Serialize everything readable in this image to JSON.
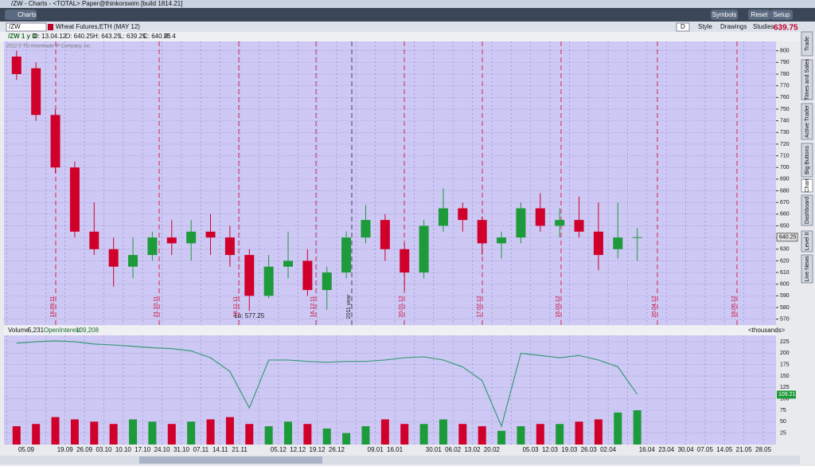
{
  "window": {
    "title": "/ZW - Charts - <TOTAL> Paper@thinkorswim [build 1814.21]",
    "tab": "Charts",
    "buttons": [
      "Symbols",
      "Reset",
      "Setup"
    ]
  },
  "symbol_bar": {
    "symbol": "/ZW",
    "description": "Wheat Futures,ETH (MAY 12)",
    "aggregation": "D",
    "tools": [
      "Style",
      "Drawings",
      "Studies"
    ],
    "last": "639.75"
  },
  "side_tabs": [
    "Trade",
    "Times and Sales",
    "Active Trader",
    "Big Buttons",
    "Chart",
    "Dashboard",
    "Level II",
    "Live News"
  ],
  "chart_data": {
    "type": "candlestick",
    "info": [
      "/ZW 1 y D",
      "D: 13.04.12",
      "O: 640.25",
      "H: 643.25",
      "L: 639.25",
      "C: 640.25",
      "R: 4"
    ],
    "copyright": "2012 © TD Ameritrade IP Company, Inc.",
    "low_annotation": "Lo: 577.25",
    "annotations": [
      "16.09.11",
      "21.10.11",
      "18.11.11",
      "16.12.11",
      "2011 year",
      "20.01.12",
      "17.02.12",
      "16.03.12",
      "20.04.12",
      "18.05.12"
    ],
    "categories": [
      null,
      "05.09",
      null,
      "19.09",
      "26.09",
      "03.10",
      "10.10",
      "17.10",
      "24.10",
      "31.10",
      "07.11",
      "14.11",
      "21.11",
      null,
      "05.12",
      "12.12",
      "19.12",
      "26.12",
      null,
      "09.01",
      "16.01",
      null,
      "30.01",
      "06.02",
      "13.02",
      "20.02",
      null,
      "05.03",
      "12.03",
      "19.03",
      "26.03",
      "02.04",
      null,
      "16.04",
      "23.04",
      "30.04",
      "07.05",
      "14.05",
      "21.05",
      "28.05"
    ],
    "open": [
      795,
      785,
      745,
      700,
      645,
      630,
      615,
      625,
      640,
      635,
      645,
      640,
      625,
      590,
      615,
      620,
      595,
      610,
      640,
      655,
      630,
      610,
      650,
      665,
      655,
      635,
      640,
      665,
      650,
      655,
      645,
      630,
      640,
      null,
      null,
      null,
      null,
      null,
      null,
      null
    ],
    "high": [
      800,
      790,
      750,
      705,
      670,
      640,
      640,
      645,
      655,
      655,
      660,
      650,
      630,
      625,
      645,
      630,
      615,
      645,
      668,
      660,
      635,
      655,
      682,
      670,
      658,
      645,
      670,
      678,
      665,
      675,
      670,
      670,
      648,
      null,
      null,
      null,
      null,
      null,
      null,
      null
    ],
    "low": [
      775,
      740,
      695,
      640,
      625,
      598,
      605,
      620,
      625,
      620,
      625,
      615,
      577.25,
      588,
      605,
      590,
      578,
      605,
      635,
      620,
      595,
      605,
      645,
      645,
      625,
      622,
      635,
      645,
      640,
      640,
      612,
      622,
      620,
      null,
      null,
      null,
      null,
      null,
      null,
      null
    ],
    "close": [
      780,
      745,
      700,
      645,
      630,
      615,
      625,
      640,
      635,
      645,
      640,
      625,
      590,
      615,
      620,
      595,
      610,
      640,
      655,
      630,
      610,
      650,
      665,
      655,
      635,
      640,
      665,
      650,
      655,
      645,
      625,
      640,
      640.25,
      null,
      null,
      null,
      null,
      null,
      null,
      null
    ],
    "up_color": "#1d9a3a",
    "down_color": "#d0002a",
    "background": "#cdc8f4",
    "ylim": [
      565,
      808
    ],
    "yticks": [
      570,
      580,
      590,
      600,
      610,
      620,
      630,
      640,
      650,
      660,
      670,
      680,
      690,
      700,
      710,
      720,
      730,
      740,
      750,
      760,
      770,
      780,
      790,
      800
    ],
    "grid": true,
    "volume_panel": {
      "labels": [
        "Volume",
        "5,231",
        "OpenInterest",
        "109,208",
        "<thousands>"
      ],
      "volume": [
        40,
        45,
        60,
        55,
        50,
        45,
        55,
        50,
        45,
        50,
        55,
        60,
        45,
        40,
        50,
        45,
        35,
        25,
        40,
        55,
        45,
        45,
        55,
        45,
        40,
        30,
        40,
        45,
        45,
        50,
        55,
        70,
        75,
        null,
        null,
        null,
        null,
        null,
        null,
        null
      ],
      "open_interest": [
        222,
        225,
        227,
        225,
        220,
        218,
        215,
        212,
        210,
        205,
        190,
        160,
        80,
        185,
        185,
        182,
        180,
        182,
        182,
        185,
        190,
        192,
        185,
        170,
        140,
        40,
        200,
        195,
        190,
        195,
        185,
        170,
        110,
        null,
        null,
        null,
        null,
        null,
        null,
        null
      ],
      "open_interest_label": {
        "value": 109.21,
        "label": "109.21"
      },
      "oi_color": "#3a9a7a",
      "ylim": [
        0,
        239
      ],
      "yticks": [
        25,
        50,
        75,
        100,
        125,
        150,
        175,
        200,
        225
      ]
    }
  }
}
